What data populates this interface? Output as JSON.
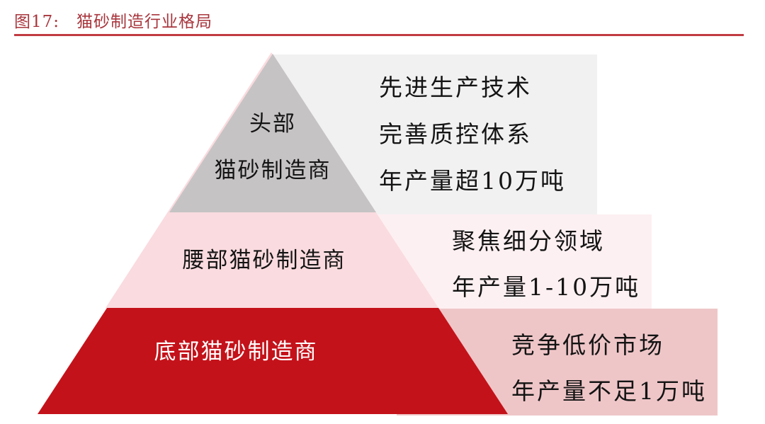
{
  "figure": {
    "label": "图17:",
    "title": "猫砂制造行业格局"
  },
  "pyramid": {
    "tiers": [
      {
        "name": "头部猫砂制造商",
        "label_lines": [
          "头部",
          "猫砂制造商"
        ],
        "descriptions": [
          "先进生产技术",
          "完善质控体系",
          "年产量超10万吨"
        ],
        "fill": "#c6c3c4",
        "callout_fill": "#f2f1f1",
        "label_color": "#141414"
      },
      {
        "name": "腰部猫砂制造商",
        "label_lines": [
          "腰部猫砂制造商"
        ],
        "descriptions": [
          "聚焦细分领域",
          "年产量1-10万吨"
        ],
        "fill": "#fadbdf",
        "callout_fill": "#fdf0f2",
        "label_color": "#141414"
      },
      {
        "name": "底部猫砂制造商",
        "label_lines": [
          "底部猫砂制造商"
        ],
        "descriptions": [
          "竞争低价市场",
          "年产量不足1万吨"
        ],
        "fill": "#c4121a",
        "callout_fill": "#efc6c8",
        "label_color": "#ffffff"
      }
    ]
  },
  "colors": {
    "caption_red": "#a8363d",
    "rule_red": "#c23b42"
  }
}
